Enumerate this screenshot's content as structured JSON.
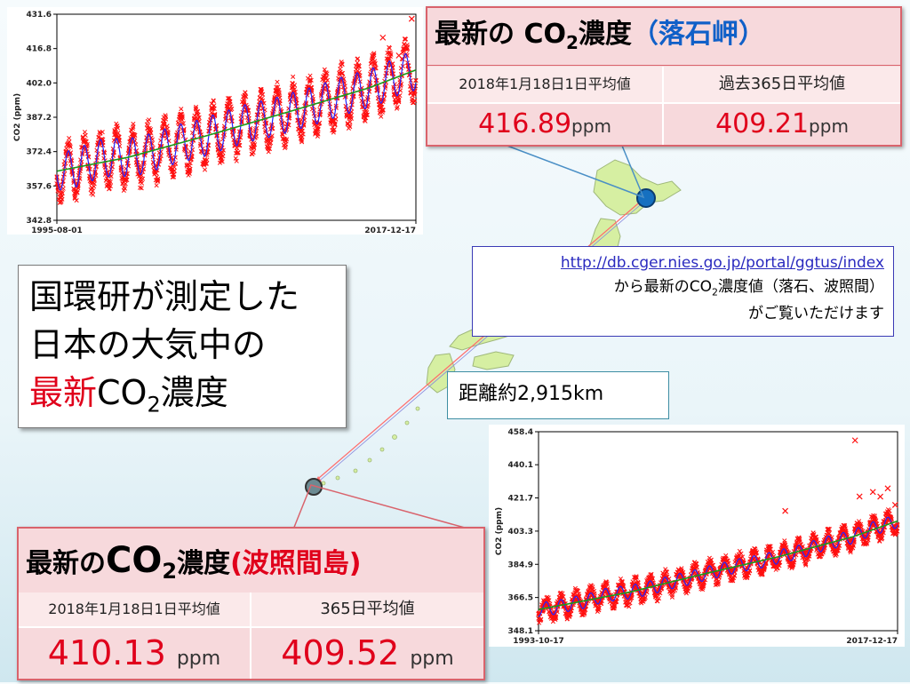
{
  "colors": {
    "data_points": "#ff1010",
    "monthly_line": "#2222ff",
    "trend_line": "#1a9a1a",
    "card_border": "#d9636c",
    "card_bg": "#f7d9dc",
    "value_red": "#e0001b",
    "map_land": "#d6efa2"
  },
  "headline": {
    "line1": "国環研が測定した",
    "line2": "日本の大気中の",
    "line3_red": "最新",
    "line3_co": "CO",
    "line3_sub": "2",
    "line3_end": "濃度"
  },
  "card_top": {
    "title_pre": "最新の CO",
    "title_sub": "2",
    "title_post": "濃度",
    "title_site": "（落石岬）",
    "col1_label": "2018年1月18日1日平均値",
    "col2_label": "過去365日平均値",
    "col1_value": "416.89",
    "col1_unit": "ppm",
    "col2_value": "409.21",
    "col2_unit": "ppm"
  },
  "card_bottom": {
    "title_pre": "最新の",
    "title_co": "CO",
    "title_sub": "2",
    "title_post": "濃度",
    "title_site": "(波照間島)",
    "col1_label": "2018年1月18日1日平均値",
    "col2_label": "365日平均値",
    "col1_value": "410.13",
    "col1_unit": "ppm",
    "col2_value": "409.52",
    "col2_unit": "ppm"
  },
  "url_box": {
    "url": "http://db.cger.nies.go.jp/portal/ggtus/index",
    "line2_pre": "から最新のCO",
    "line2_sub": "2",
    "line2_post": "濃度値（落石、波照間）",
    "line3": "がご覧いただけます"
  },
  "distance_label": "距離約2,915km",
  "chart_data": [
    {
      "type": "scatter",
      "site": "落石岬",
      "title": "",
      "xlabel": "",
      "ylabel": "CO2 (ppm)",
      "x_range": [
        "1995-08-01",
        "2017-12-17"
      ],
      "x_tick_labels": [
        "1995-08-01",
        "2017-12-17"
      ],
      "ylim": [
        342.8,
        431.6
      ],
      "y_ticks": [
        342.8,
        357.6,
        372.4,
        387.2,
        402.0,
        416.8,
        431.6
      ],
      "y_tick_labels": [
        "342.8",
        "357.6",
        "372.4",
        "387.2",
        "402.0",
        "416.8",
        "431.6"
      ],
      "grid": false,
      "seasonal_cycle": true,
      "series": [
        {
          "kind": "daily-points",
          "marker": "x",
          "color": "#ff1010",
          "x": [
            1995.6,
            1996.5,
            1997.5,
            1998.5,
            1999.5,
            2000.5,
            2001.5,
            2002.5,
            2003.5,
            2004.5,
            2005.5,
            2006.5,
            2007.5,
            2008.5,
            2009.5,
            2010.5,
            2011.5,
            2012.5,
            2013.5,
            2014.5,
            2015.5,
            2016.5,
            2017.5
          ],
          "y": [
            364.0,
            364.6,
            367.4,
            369.8,
            369.8,
            370.2,
            372.1,
            374.4,
            376.5,
            377.9,
            380.4,
            382.5,
            384.8,
            386.2,
            387.9,
            390.1,
            391.9,
            394.3,
            396.6,
            398.5,
            400.6,
            403.8,
            406.9
          ]
        },
        {
          "kind": "trend",
          "color": "#1a9a1a",
          "x": [
            1995.6,
            2000.0,
            2005.0,
            2010.0,
            2015.0,
            2017.96
          ],
          "y": [
            364.0,
            369.9,
            379.4,
            389.5,
            399.8,
            407.6
          ]
        },
        {
          "kind": "outliers",
          "marker": "x",
          "color": "#ff1010",
          "x": [
            2016.9,
            2017.4,
            2017.7,
            2015.9
          ],
          "y": [
            413.8,
            417.2,
            429.6,
            421.5
          ]
        }
      ]
    },
    {
      "type": "scatter",
      "site": "波照間島",
      "title": "",
      "xlabel": "",
      "ylabel": "CO2 (ppm)",
      "x_range": [
        "1993-10-17",
        "2017-12-17"
      ],
      "x_tick_labels": [
        "1993-10-17",
        "2017-12-17"
      ],
      "ylim": [
        348.1,
        458.4
      ],
      "y_ticks": [
        348.1,
        366.5,
        384.9,
        403.3,
        421.7,
        440.1,
        458.4
      ],
      "y_tick_labels": [
        "348.1",
        "366.5",
        "384.9",
        "403.3",
        "421.7",
        "440.1",
        "458.4"
      ],
      "grid": false,
      "seasonal_cycle": true,
      "series": [
        {
          "kind": "daily-points",
          "marker": "x",
          "color": "#ff1010",
          "x": [
            1993.8,
            1995.0,
            1996.0,
            1997.0,
            1998.0,
            1999.0,
            2000.0,
            2001.0,
            2002.0,
            2003.0,
            2004.0,
            2005.0,
            2006.0,
            2007.0,
            2008.0,
            2009.0,
            2010.0,
            2011.0,
            2012.0,
            2013.0,
            2014.0,
            2015.0,
            2016.0,
            2017.0,
            2017.96
          ],
          "y": [
            359.8,
            361.0,
            362.9,
            364.4,
            367.3,
            368.6,
            369.6,
            371.3,
            373.3,
            375.6,
            377.3,
            379.7,
            381.6,
            383.7,
            385.4,
            386.9,
            389.2,
            391.0,
            393.4,
            396.2,
            398.1,
            400.3,
            403.9,
            406.5,
            408.9
          ]
        },
        {
          "kind": "trend",
          "color": "#1a9a1a",
          "x": [
            1993.8,
            2000.0,
            2005.0,
            2010.0,
            2015.0,
            2017.96
          ],
          "y": [
            359.8,
            369.6,
            379.7,
            389.2,
            400.3,
            408.9
          ]
        },
        {
          "kind": "outliers",
          "marker": "x",
          "color": "#ff1010",
          "x": [
            2015.1,
            2015.4,
            2016.3,
            2016.8,
            2017.3,
            2017.8,
            2010.4
          ],
          "y": [
            453.6,
            422.5,
            425.0,
            422.4,
            427.0,
            417.8,
            414.5
          ]
        }
      ]
    }
  ]
}
